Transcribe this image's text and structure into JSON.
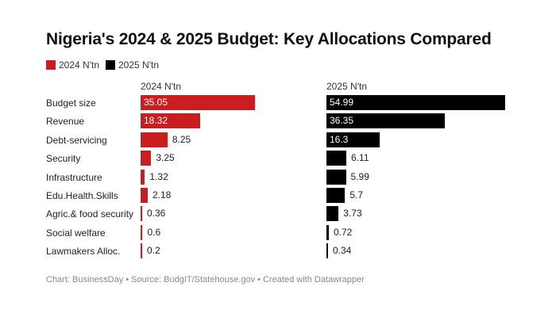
{
  "chart_data": {
    "type": "bar",
    "title": "Nigeria's 2024 & 2025 Budget: Key Allocations Compared",
    "categories": [
      "Budget size",
      "Revenue",
      "Debt-servicing",
      "Security",
      "Infrastructure",
      "Edu.Health.Skills",
      "Agric.& food security",
      "Social welfare",
      "Lawmakers Alloc."
    ],
    "series": [
      {
        "name": "2024 N'tn",
        "color": "#c91d1f",
        "values": [
          35.05,
          18.32,
          8.25,
          3.25,
          1.32,
          2.18,
          0.36,
          0.6,
          0.2
        ]
      },
      {
        "name": "2025 N'tn",
        "color": "#000000",
        "values": [
          54.99,
          36.35,
          16.3,
          6.11,
          5.99,
          5.7,
          3.73,
          0.72,
          0.34
        ]
      }
    ],
    "legend_position": "top-left",
    "grid": false
  },
  "footer": "Chart: BusinessDay • Source: BudgIT/Statehouse.gov • Created with Datawrapper"
}
